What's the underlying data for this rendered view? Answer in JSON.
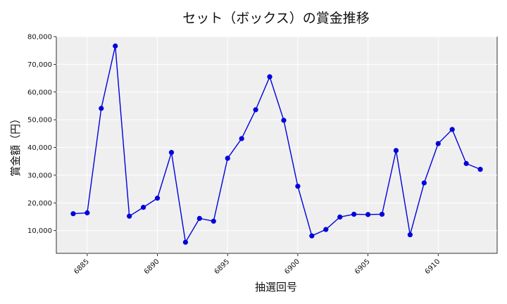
{
  "chart_data": {
    "type": "line",
    "title": "セット（ボックス）の賞金推移",
    "xlabel": "抽選回号",
    "ylabel": "賞金額（円）",
    "x": [
      6884,
      6885,
      6886,
      6887,
      6888,
      6889,
      6890,
      6891,
      6892,
      6893,
      6894,
      6895,
      6896,
      6897,
      6898,
      6899,
      6900,
      6901,
      6902,
      6903,
      6904,
      6905,
      6906,
      6907,
      6908,
      6909,
      6910,
      6911,
      6912,
      6913
    ],
    "series": [
      {
        "values": [
          16100,
          16400,
          54100,
          76600,
          15200,
          18400,
          21700,
          38200,
          5800,
          14400,
          13400,
          36100,
          43200,
          53600,
          65500,
          49800,
          26000,
          8100,
          10400,
          14900,
          15900,
          15800,
          15900,
          38900,
          8500,
          27200,
          41400,
          46500,
          34200,
          32100
        ],
        "color": "#0000dd"
      }
    ],
    "xlim": [
      6882.8,
      6914.2
    ],
    "ylim": [
      1800,
      80000
    ],
    "xticks": [
      6885,
      6890,
      6895,
      6900,
      6905,
      6910
    ],
    "xtick_labels": [
      "6885",
      "6890",
      "6895",
      "6900",
      "6905",
      "6910"
    ],
    "yticks": [
      10000,
      20000,
      30000,
      40000,
      50000,
      60000,
      70000,
      80000
    ],
    "ytick_labels": [
      "10,000",
      "20,000",
      "30,000",
      "40,000",
      "50,000",
      "60,000",
      "70,000",
      "80,000"
    ],
    "grid": true,
    "plot_background": "#efefef",
    "grid_color": "#ffffff"
  }
}
